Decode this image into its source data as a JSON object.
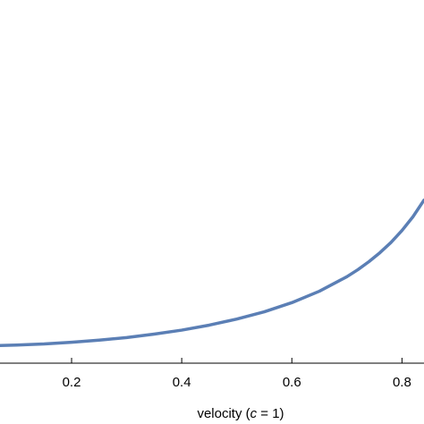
{
  "chart_data": {
    "type": "line",
    "xlabel_parts": [
      "velocity (",
      "c",
      " = 1)"
    ],
    "xlim": [
      0.07,
      0.84
    ],
    "ylim": [
      0.9,
      3.0
    ],
    "x_ticks": [
      0.2,
      0.4,
      0.6,
      0.8
    ],
    "x_tick_labels": [
      "0.2",
      "0.4",
      "0.6",
      "0.8"
    ],
    "grid": false,
    "series": [
      {
        "color": "#5b7fb5",
        "x": [
          0.07,
          0.1,
          0.15,
          0.2,
          0.25,
          0.3,
          0.35,
          0.4,
          0.45,
          0.5,
          0.55,
          0.6,
          0.65,
          0.7,
          0.72,
          0.74,
          0.76,
          0.78,
          0.8,
          0.82,
          0.84
        ],
        "y": [
          1.002,
          1.005,
          1.011,
          1.021,
          1.033,
          1.048,
          1.068,
          1.091,
          1.12,
          1.155,
          1.197,
          1.25,
          1.316,
          1.4,
          1.441,
          1.487,
          1.539,
          1.598,
          1.667,
          1.747,
          1.843
        ]
      }
    ]
  }
}
